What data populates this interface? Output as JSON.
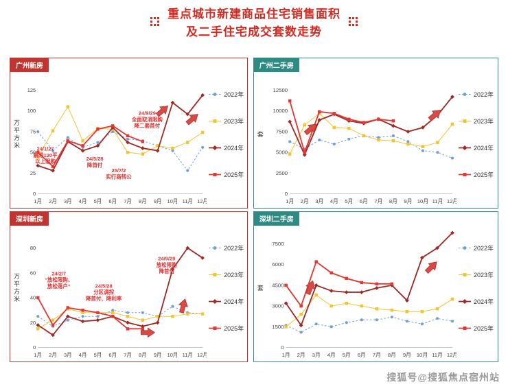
{
  "page": {
    "title_line1": "重点城市新建商品住宅销售面积",
    "title_line2": "及二手住宅成交套数走势",
    "watermark": "搜狐号@搜狐焦点宿州站",
    "title_color": "#d42a22",
    "new_home_accent": "#c13531",
    "secondhand_accent": "#2e8b84",
    "annotation_color": "#e03030"
  },
  "chart_data": [
    {
      "type": "line",
      "title": "广州新房",
      "xlabel": "",
      "ylabel": "万平方米",
      "ylim": [
        0,
        150
      ],
      "yticks": [
        0,
        25,
        50,
        75,
        100,
        125,
        150
      ],
      "grid": false,
      "legend_position": "right",
      "categories": [
        "1月",
        "2月",
        "3月",
        "4月",
        "5月",
        "6月",
        "7月",
        "8月",
        "9月",
        "10月",
        "11月",
        "12月"
      ],
      "series": [
        {
          "name": "2022年",
          "color": "#6f9fd8",
          "marker": "circle",
          "width": 1,
          "dash": "2.5,2.5",
          "values": [
            75,
            52,
            68,
            56,
            62,
            75,
            66,
            64,
            58,
            52,
            28,
            56
          ]
        },
        {
          "name": "2023年",
          "color": "#f2c431",
          "marker": "square",
          "width": 1,
          "dash": "",
          "values": [
            44,
            76,
            105,
            64,
            79,
            78,
            50,
            48,
            58,
            55,
            62,
            74
          ]
        },
        {
          "name": "2024年",
          "color": "#9e2a25",
          "marker": "diamond",
          "width": 1.8,
          "dash": "",
          "values": [
            34,
            28,
            63,
            52,
            58,
            80,
            62,
            55,
            52,
            110,
            96,
            119
          ]
        },
        {
          "name": "2025年",
          "color": "#e43732",
          "marker": "square",
          "width": 1.8,
          "dash": "",
          "values": [
            50,
            33,
            64,
            58,
            78,
            82,
            70,
            63,
            null,
            null,
            null,
            null
          ]
        }
      ],
      "annotations": [
        {
          "text": "24/1/27\n解除120平\n以上限购",
          "month": 0.5,
          "value": 52
        },
        {
          "text": "24/5/28\n降首付",
          "month": 3.8,
          "value": 40
        },
        {
          "text": "25/7/2\n实行商转公",
          "month": 5.4,
          "value": 26
        },
        {
          "text": "24/9/29\n全面取消限购\n降二套首付",
          "month": 7.3,
          "value": 95
        }
      ],
      "arrows": [
        {
          "month": 8.3,
          "value": 100,
          "angle": -40
        },
        {
          "month": 10.3,
          "value": 90,
          "angle": -40
        }
      ]
    },
    {
      "type": "line",
      "title": "广州二手房",
      "xlabel": "",
      "ylabel": "套",
      "ylim": [
        0,
        15000
      ],
      "yticks": [
        0,
        2500,
        5000,
        7500,
        10000,
        12500,
        15000
      ],
      "grid": false,
      "legend_position": "right",
      "categories": [
        "1月",
        "2月",
        "3月",
        "4月",
        "5月",
        "6月",
        "7月",
        "8月",
        "9月",
        "10月",
        "11月",
        "12月"
      ],
      "series": [
        {
          "name": "2022年",
          "color": "#6f9fd8",
          "marker": "circle",
          "width": 1,
          "dash": "2.5,2.5",
          "values": [
            6300,
            5400,
            6500,
            6000,
            6600,
            7000,
            6800,
            7000,
            6300,
            5200,
            5000,
            4300
          ]
        },
        {
          "name": "2023年",
          "color": "#f2c431",
          "marker": "square",
          "width": 1,
          "dash": "",
          "values": [
            4800,
            8300,
            9700,
            8000,
            7900,
            7000,
            6500,
            6400,
            6000,
            5700,
            6200,
            8400
          ]
        },
        {
          "name": "2024年",
          "color": "#9e2a25",
          "marker": "diamond",
          "width": 1.8,
          "dash": "",
          "values": [
            8700,
            4700,
            8900,
            9600,
            8800,
            8500,
            9000,
            8200,
            7500,
            8000,
            9500,
            11700
          ]
        },
        {
          "name": "2025年",
          "color": "#e43732",
          "marker": "square",
          "width": 1.8,
          "dash": "",
          "values": [
            11200,
            5000,
            9900,
            9700,
            9000,
            8600,
            9000,
            8800,
            null,
            null,
            null,
            null
          ]
        }
      ],
      "annotations": [],
      "arrows": [
        {
          "month": 1.4,
          "value": 7800,
          "angle": -40
        },
        {
          "month": 9.8,
          "value": 9500,
          "angle": -40
        }
      ]
    },
    {
      "type": "line",
      "title": "深圳新房",
      "xlabel": "",
      "ylabel": "万平方米",
      "ylim": [
        0,
        100
      ],
      "yticks": [
        0,
        20,
        40,
        60,
        80,
        100
      ],
      "grid": false,
      "legend_position": "right",
      "categories": [
        "1月",
        "2月",
        "3月",
        "4月",
        "5月",
        "6月",
        "7月",
        "8月",
        "9月",
        "10月",
        "11月",
        "12月"
      ],
      "series": [
        {
          "name": "2022年",
          "color": "#6f9fd8",
          "marker": "circle",
          "width": 1,
          "dash": "2.5,2.5",
          "values": [
            25,
            17,
            22,
            25,
            25,
            30,
            28,
            28,
            25,
            33,
            28,
            27
          ]
        },
        {
          "name": "2023年",
          "color": "#f2c431",
          "marker": "square",
          "width": 1,
          "dash": "",
          "values": [
            15,
            22,
            31,
            28,
            28,
            28,
            25,
            22,
            25,
            25,
            27,
            27
          ]
        },
        {
          "name": "2024年",
          "color": "#9e2a25",
          "marker": "diamond",
          "width": 1.8,
          "dash": "",
          "values": [
            18,
            10,
            25,
            21,
            22,
            25,
            20,
            17,
            20,
            63,
            80,
            72
          ]
        },
        {
          "name": "2025年",
          "color": "#e43732",
          "marker": "square",
          "width": 1.8,
          "dash": "",
          "values": [
            40,
            18,
            32,
            30,
            28,
            25,
            15,
            15,
            null,
            null,
            null,
            null
          ]
        }
      ],
      "annotations": [
        {
          "text": "24/2/7\n“放松限购、\n放松落户”",
          "month": 1.4,
          "value": 58
        },
        {
          "text": "24/5/28\n分区调控\n降首付、降利率",
          "month": 4.4,
          "value": 48
        },
        {
          "text": "24/9/29\n放松限购\n降首付",
          "month": 8.6,
          "value": 70
        }
      ],
      "arrows": [
        {
          "month": 7.3,
          "value": 12,
          "angle": 0
        },
        {
          "month": 9.7,
          "value": 33,
          "angle": -75
        }
      ]
    },
    {
      "type": "line",
      "title": "深圳二手房",
      "xlabel": "",
      "ylabel": "套",
      "ylim": [
        0,
        9000
      ],
      "yticks": [
        0,
        1500,
        3000,
        4500,
        6000,
        7500,
        9000
      ],
      "grid": false,
      "legend_position": "right",
      "categories": [
        "1月",
        "2月",
        "3月",
        "4月",
        "5月",
        "6月",
        "7月",
        "8月",
        "9月",
        "10月",
        "11月",
        "12月"
      ],
      "series": [
        {
          "name": "2022年",
          "color": "#6f9fd8",
          "marker": "circle",
          "width": 1,
          "dash": "2.5,2.5",
          "values": [
            1600,
            1100,
            1700,
            1500,
            1800,
            2000,
            2000,
            2200,
            1900,
            1700,
            2100,
            1900
          ]
        },
        {
          "name": "2023年",
          "color": "#f2c431",
          "marker": "square",
          "width": 1,
          "dash": "",
          "values": [
            1500,
            2400,
            3800,
            3000,
            3200,
            3000,
            2800,
            2700,
            2600,
            2600,
            2800,
            3500
          ]
        },
        {
          "name": "2024年",
          "color": "#9e2a25",
          "marker": "diamond",
          "width": 1.8,
          "dash": "",
          "values": [
            3200,
            1600,
            4500,
            4100,
            4000,
            4000,
            4300,
            4500,
            3400,
            6500,
            7200,
            8300
          ]
        },
        {
          "name": "2025年",
          "color": "#e43732",
          "marker": "square",
          "width": 1.8,
          "dash": "",
          "values": [
            4500,
            3000,
            6200,
            5400,
            5000,
            4700,
            4600,
            4600,
            null,
            null,
            null,
            null
          ]
        }
      ],
      "annotations": [],
      "arrows": [
        {
          "month": 1.6,
          "value": 4300,
          "angle": -70
        },
        {
          "month": 9.6,
          "value": 5800,
          "angle": -45
        }
      ]
    }
  ]
}
